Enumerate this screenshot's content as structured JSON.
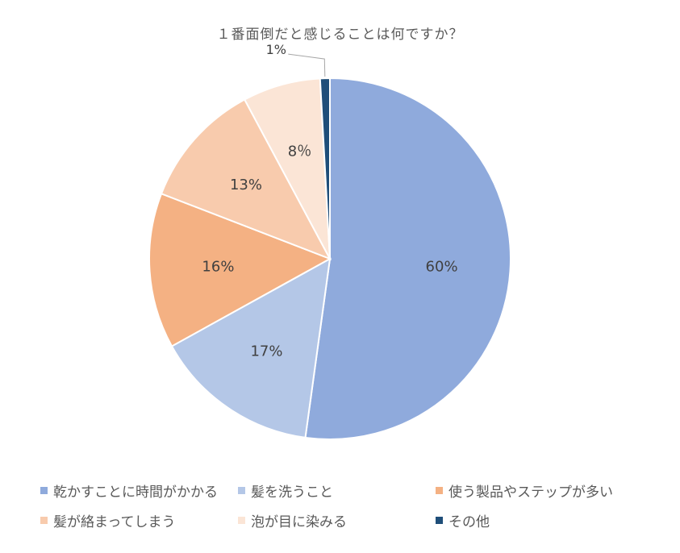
{
  "chart_data": {
    "type": "pie",
    "title": "１番面倒だと感じることは何ですか？",
    "categories": [
      "乾かすことに時間がかかる",
      "髪を洗うこと",
      "使う製品やステップが多い",
      "髪が絡まってしまう",
      "泡が目に染みる",
      "その他"
    ],
    "values": [
      60,
      17,
      16,
      13,
      8,
      1
    ],
    "data_labels": [
      "60%",
      "17%",
      "16%",
      "13%",
      "8％",
      "1%"
    ],
    "colors": [
      "#8faadc",
      "#b4c7e7",
      "#f4b183",
      "#f8cbad",
      "#fbe5d6",
      "#1f4e79"
    ],
    "legend_position": "bottom"
  }
}
